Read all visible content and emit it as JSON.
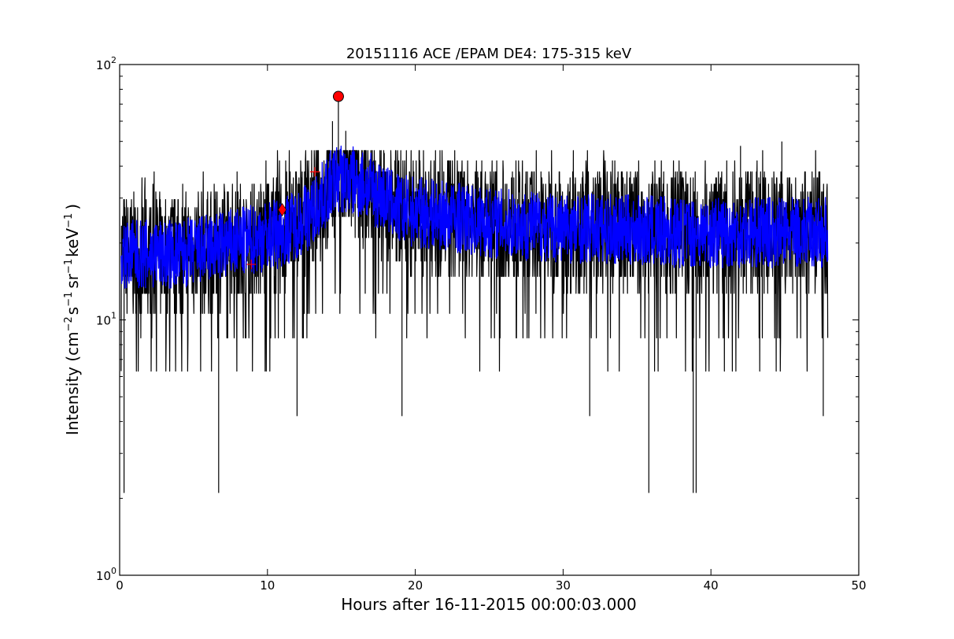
{
  "chart_data": {
    "type": "line",
    "title": "20151116 ACE /EPAM DE4: 175-315 keV",
    "xlabel": "Hours after 16-11-2015 00:00:03.000",
    "ylabel_parts": {
      "prefix": "Intensity (cm",
      "sup1": "−2",
      "mid1": "s",
      "sup2": "−1",
      "mid2": "sr",
      "sup3": "−1",
      "mid3": "keV",
      "sup4": "−1",
      "suffix": ")"
    },
    "xlim": [
      0,
      50
    ],
    "ylim": [
      1,
      100
    ],
    "yscale": "log",
    "grid": false,
    "x_ticks": [
      0,
      10,
      20,
      30,
      40,
      50
    ],
    "y_ticks": [
      {
        "value": 1,
        "base": "10",
        "exp": "0"
      },
      {
        "value": 10,
        "base": "10",
        "exp": "1"
      },
      {
        "value": 100,
        "base": "10",
        "exp": "2"
      }
    ],
    "series": [
      {
        "color": "#000000",
        "style": "raw",
        "x_range": [
          0.1,
          47.9
        ],
        "baseline_profile": [
          [
            0.1,
            18
          ],
          [
            4,
            18
          ],
          [
            8,
            20
          ],
          [
            11,
            22
          ],
          [
            13,
            26
          ],
          [
            14.7,
            36
          ],
          [
            16.5,
            34
          ],
          [
            19,
            27
          ],
          [
            25,
            24
          ],
          [
            30,
            23
          ],
          [
            38,
            22
          ],
          [
            42,
            22
          ],
          [
            47.9,
            22
          ]
        ],
        "spikes_down": [
          [
            0.3,
            2.1
          ],
          [
            6.7,
            2.1
          ],
          [
            35.8,
            2.1
          ],
          [
            38.8,
            2.1
          ],
          [
            39.0,
            2.1
          ],
          [
            19.1,
            4.2
          ],
          [
            31.8,
            4.2
          ],
          [
            12.0,
            4.2
          ],
          [
            47.6,
            4.2
          ]
        ],
        "spikes_up": [
          [
            14.8,
            75
          ],
          [
            14.4,
            60
          ],
          [
            15.3,
            55
          ],
          [
            17.9,
            45
          ],
          [
            42.0,
            48
          ],
          [
            44.8,
            50
          ]
        ]
      },
      {
        "color": "#0000ff",
        "style": "smoothed",
        "x_range": [
          0.1,
          47.9
        ],
        "baseline_profile": [
          [
            0.1,
            18
          ],
          [
            4,
            18
          ],
          [
            8,
            20
          ],
          [
            11,
            22
          ],
          [
            13,
            26
          ],
          [
            14.7,
            36
          ],
          [
            16.5,
            34
          ],
          [
            19,
            27
          ],
          [
            25,
            24
          ],
          [
            30,
            23
          ],
          [
            38,
            22
          ],
          [
            42,
            22
          ],
          [
            47.9,
            22
          ]
        ]
      }
    ],
    "markers": [
      {
        "shape": "circle",
        "x": 14.8,
        "y": 75,
        "color": "#ff0000"
      },
      {
        "shape": "diamond",
        "x": 11.0,
        "y": 27,
        "color": "#ff0000"
      },
      {
        "shape": "plus",
        "x": 8.9,
        "y": 16.5,
        "color": "#ff0000"
      },
      {
        "shape": "plus",
        "x": 13.2,
        "y": 38,
        "color": "#ff0000"
      }
    ]
  }
}
